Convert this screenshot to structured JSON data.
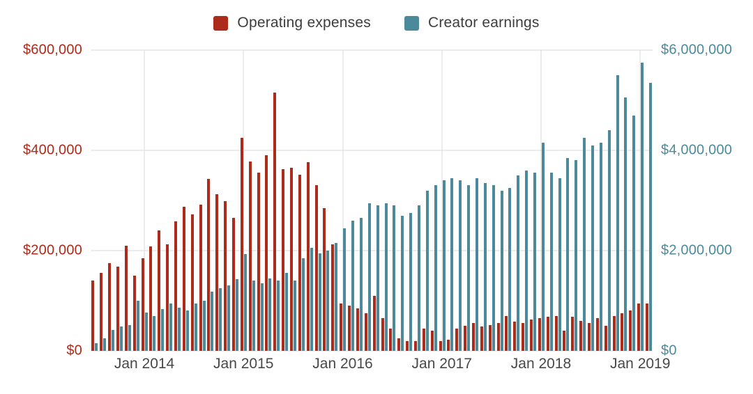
{
  "chart_data": {
    "type": "bar",
    "title": "",
    "legend_position": "top",
    "grid": true,
    "grid_color": "#dadada",
    "background": "#ffffff",
    "categories": [
      "Jul 2013",
      "Aug 2013",
      "Sep 2013",
      "Oct 2013",
      "Nov 2013",
      "Dec 2013",
      "Jan 2014",
      "Feb 2014",
      "Mar 2014",
      "Apr 2014",
      "May 2014",
      "Jun 2014",
      "Jul 2014",
      "Aug 2014",
      "Sep 2014",
      "Oct 2014",
      "Nov 2014",
      "Dec 2014",
      "Jan 2015",
      "Feb 2015",
      "Mar 2015",
      "Apr 2015",
      "May 2015",
      "Jun 2015",
      "Jul 2015",
      "Aug 2015",
      "Sep 2015",
      "Oct 2015",
      "Nov 2015",
      "Dec 2015",
      "Jan 2016",
      "Feb 2016",
      "Mar 2016",
      "Apr 2016",
      "May 2016",
      "Jun 2016",
      "Jul 2016",
      "Aug 2016",
      "Sep 2016",
      "Oct 2016",
      "Nov 2016",
      "Dec 2016",
      "Jan 2017",
      "Feb 2017",
      "Mar 2017",
      "Apr 2017",
      "May 2017",
      "Jun 2017",
      "Jul 2017",
      "Aug 2017",
      "Sep 2017",
      "Oct 2017",
      "Nov 2017",
      "Dec 2017",
      "Jan 2018",
      "Feb 2018",
      "Mar 2018",
      "Apr 2018",
      "May 2018",
      "Jun 2018",
      "Jul 2018",
      "Aug 2018",
      "Sep 2018",
      "Oct 2018",
      "Nov 2018",
      "Dec 2018",
      "Jan 2019",
      "Feb 2019"
    ],
    "series": [
      {
        "name": "Operating expenses",
        "axis": "left",
        "color": "#ac2b1a",
        "values": [
          140000,
          155000,
          175000,
          168000,
          210000,
          150000,
          185000,
          208000,
          240000,
          213000,
          258000,
          288000,
          272000,
          292000,
          343000,
          312000,
          298000,
          265000,
          425000,
          378000,
          355000,
          390000,
          515000,
          363000,
          365000,
          352000,
          376000,
          330000,
          285000,
          213000,
          95000,
          90000,
          85000,
          75000,
          110000,
          65000,
          45000,
          25000,
          20000,
          20000,
          45000,
          40000,
          20000,
          22000,
          45000,
          50000,
          55000,
          48000,
          52000,
          55000,
          70000,
          58000,
          55000,
          62000,
          65000,
          68000,
          70000,
          40000,
          68000,
          60000,
          55000,
          65000,
          50000,
          70000,
          75000,
          80000,
          95000,
          95000
        ]
      },
      {
        "name": "Creator earnings",
        "axis": "right",
        "color": "#4c8a9b",
        "values": [
          150000,
          250000,
          420000,
          480000,
          520000,
          1000000,
          760000,
          700000,
          840000,
          950000,
          860000,
          800000,
          950000,
          1000000,
          1180000,
          1250000,
          1300000,
          1430000,
          1930000,
          1400000,
          1350000,
          1450000,
          1400000,
          1560000,
          1400000,
          1850000,
          2050000,
          1950000,
          2000000,
          2150000,
          2450000,
          2600000,
          2650000,
          2950000,
          2900000,
          2950000,
          2900000,
          2700000,
          2750000,
          2900000,
          3200000,
          3300000,
          3400000,
          3450000,
          3400000,
          3300000,
          3450000,
          3350000,
          3300000,
          3200000,
          3250000,
          3500000,
          3600000,
          3550000,
          4150000,
          3550000,
          3450000,
          3850000,
          3800000,
          4250000,
          4100000,
          4150000,
          4400000,
          5500000,
          5050000,
          4700000,
          5750000,
          5350000
        ]
      }
    ],
    "left_axis": {
      "min": 0,
      "max": 600000,
      "color": "#ac2b1a",
      "ticks": [
        {
          "value": 0,
          "label": "$0"
        },
        {
          "value": 200000,
          "label": "$200,000"
        },
        {
          "value": 400000,
          "label": "$400,000"
        },
        {
          "value": 600000,
          "label": "$600,000"
        }
      ]
    },
    "right_axis": {
      "min": 0,
      "max": 6000000,
      "color": "#4c8a9b",
      "ticks": [
        {
          "value": 0,
          "label": "$0"
        },
        {
          "value": 2000000,
          "label": "$2,000,000"
        },
        {
          "value": 4000000,
          "label": "$4,000,000"
        },
        {
          "value": 6000000,
          "label": "$6,000,000"
        }
      ]
    },
    "x_axis": {
      "color": "#484848",
      "ticks": [
        {
          "index": 6,
          "label": "Jan 2014"
        },
        {
          "index": 18,
          "label": "Jan 2015"
        },
        {
          "index": 30,
          "label": "Jan 2016"
        },
        {
          "index": 42,
          "label": "Jan 2017"
        },
        {
          "index": 54,
          "label": "Jan 2018"
        },
        {
          "index": 66,
          "label": "Jan 2019"
        }
      ]
    }
  }
}
